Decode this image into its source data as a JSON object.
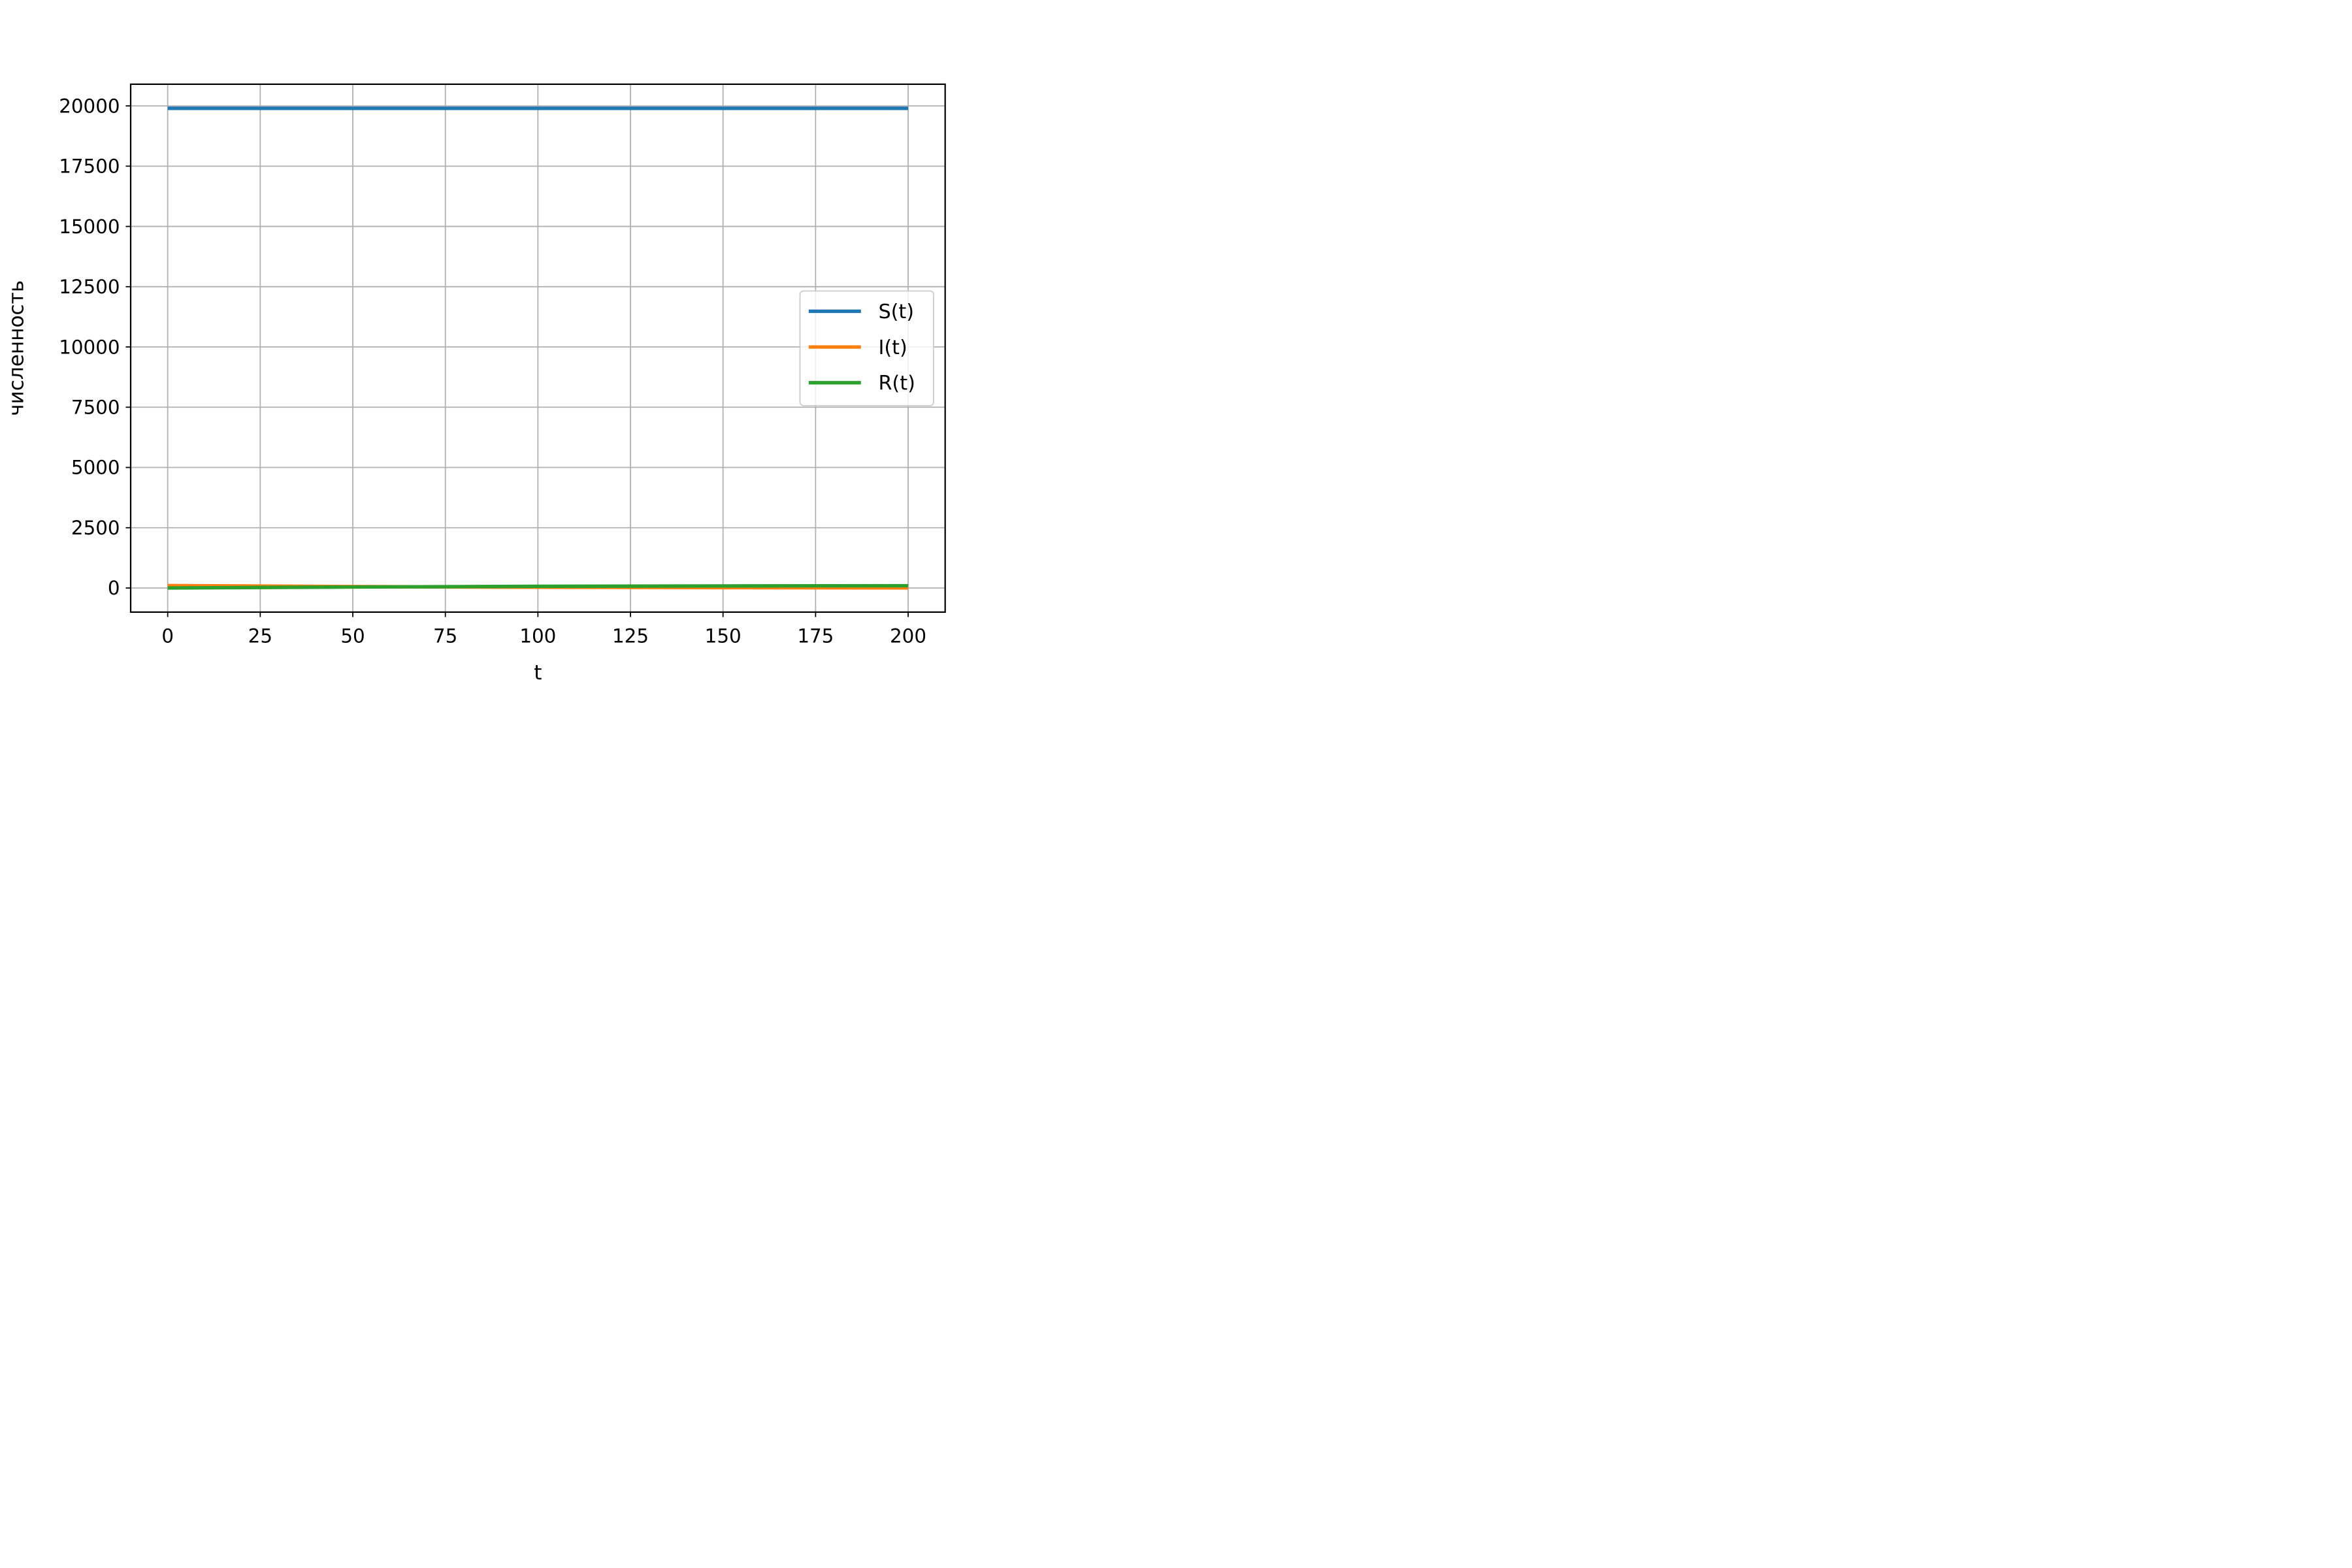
{
  "chart_data": {
    "type": "line",
    "title": "",
    "xlabel": "t",
    "ylabel": "численность",
    "xlim": [
      -10,
      210
    ],
    "ylim": [
      -1000,
      20900
    ],
    "xticks": [
      0,
      25,
      50,
      75,
      100,
      125,
      150,
      175,
      200
    ],
    "yticks": [
      0,
      2500,
      5000,
      7500,
      10000,
      12500,
      15000,
      17500,
      20000
    ],
    "grid": true,
    "legend_position": "center-right",
    "series": [
      {
        "name": "S(t)",
        "color": "#1f77b4",
        "x": [
          0,
          200
        ],
        "y": [
          19900,
          19900
        ]
      },
      {
        "name": "I(t)",
        "color": "#ff7f0e",
        "x": [
          0,
          50,
          100,
          150,
          200
        ],
        "y": [
          100,
          60,
          30,
          15,
          5
        ]
      },
      {
        "name": "R(t)",
        "color": "#2ca02c",
        "x": [
          0,
          50,
          100,
          150,
          200
        ],
        "y": [
          0,
          40,
          70,
          85,
          95
        ]
      }
    ]
  }
}
